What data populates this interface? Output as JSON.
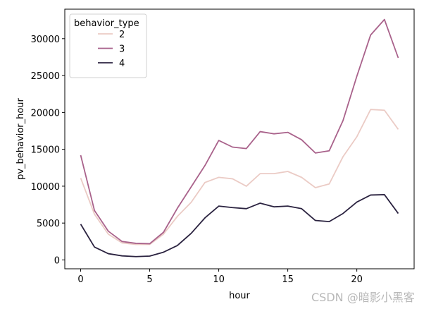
{
  "chart_data": {
    "type": "line",
    "xlabel": "hour",
    "ylabel": "pv_behavior_hour",
    "xlim": [
      -1.15,
      24.15
    ],
    "ylim": [
      -1200,
      34000
    ],
    "xticks": [
      0,
      5,
      10,
      15,
      20
    ],
    "yticks": [
      0,
      5000,
      10000,
      15000,
      20000,
      25000,
      30000
    ],
    "legend": {
      "title": "behavior_type",
      "placement": "top-left"
    },
    "x": [
      0,
      1,
      2,
      3,
      4,
      5,
      6,
      7,
      8,
      9,
      10,
      11,
      12,
      13,
      14,
      15,
      16,
      17,
      18,
      19,
      20,
      21,
      22,
      23
    ],
    "series": [
      {
        "name": "2",
        "color": "#ebcbc5",
        "values": [
          11100,
          6200,
          3500,
          2300,
          2100,
          2100,
          3500,
          5900,
          7800,
          10500,
          11200,
          11000,
          10000,
          11700,
          11700,
          12000,
          11200,
          9800,
          10300,
          14000,
          16700,
          20400,
          20300,
          17700
        ]
      },
      {
        "name": "3",
        "color": "#a9628b",
        "values": [
          14200,
          6700,
          3900,
          2500,
          2250,
          2200,
          3750,
          7000,
          9900,
          12800,
          16200,
          15300,
          15100,
          17400,
          17100,
          17300,
          16300,
          14500,
          14800,
          18900,
          24900,
          30500,
          32600,
          27400
        ]
      },
      {
        "name": "4",
        "color": "#2b2340",
        "values": [
          4850,
          1750,
          850,
          550,
          450,
          520,
          1050,
          1950,
          3600,
          5700,
          7300,
          7100,
          6950,
          7700,
          7200,
          7300,
          6950,
          5350,
          5200,
          6300,
          7850,
          8800,
          8850,
          6300
        ]
      }
    ]
  },
  "watermark": "CSDN @暗影小黑客"
}
